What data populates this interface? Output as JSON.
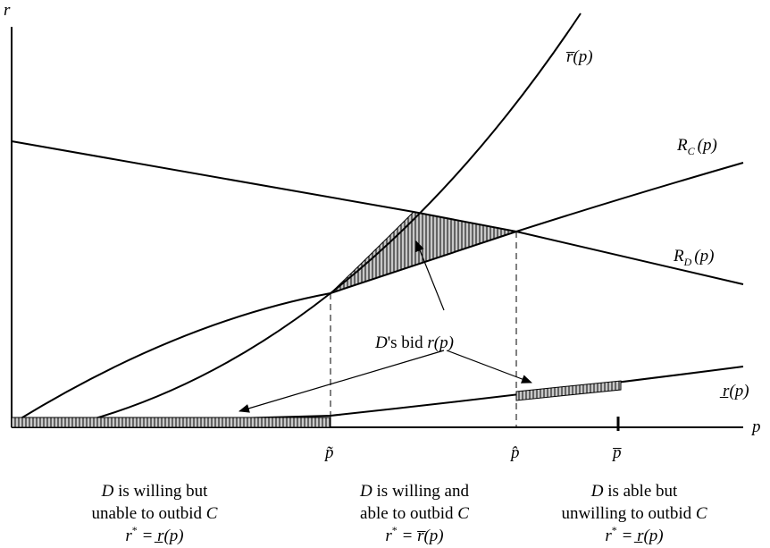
{
  "axes": {
    "x": "p",
    "y": "r"
  },
  "curves": {
    "r_bar": "r̅(p)",
    "R_C": {
      "main": "R",
      "sub": "C",
      "arg": "(p)"
    },
    "R_D": {
      "main": "R",
      "sub": "D",
      "arg": "(p)"
    },
    "r_under": "r̲(p)"
  },
  "ticks": {
    "p_tilde": "p̃",
    "p_hat": "p̂",
    "p_bar": "p̅"
  },
  "callout": {
    "D": "D",
    "mid": "'s bid ",
    "expr": "r(p)"
  },
  "regions": [
    {
      "line1_var": "D",
      "line1_rest": " is willing but",
      "line2_rest": "unable to outbid ",
      "line2_var": "C",
      "eq_lhs": "r",
      "eq_sup": "*",
      "eq_rhs": " = r̲(p)"
    },
    {
      "line1_var": "D",
      "line1_rest": " is willing and",
      "line2_rest": "able to outbid ",
      "line2_var": "C",
      "eq_lhs": "r",
      "eq_sup": "*",
      "eq_rhs": " = r̅(p)"
    },
    {
      "line1_var": "D",
      "line1_rest": " is able but",
      "line2_rest": "unwilling to outbid ",
      "line2_var": "C",
      "eq_lhs": "r",
      "eq_sup": "*",
      "eq_rhs": " = r̲(p)"
    }
  ],
  "colors": {
    "hatch": "#000000",
    "fill": "#bfbfbf"
  }
}
